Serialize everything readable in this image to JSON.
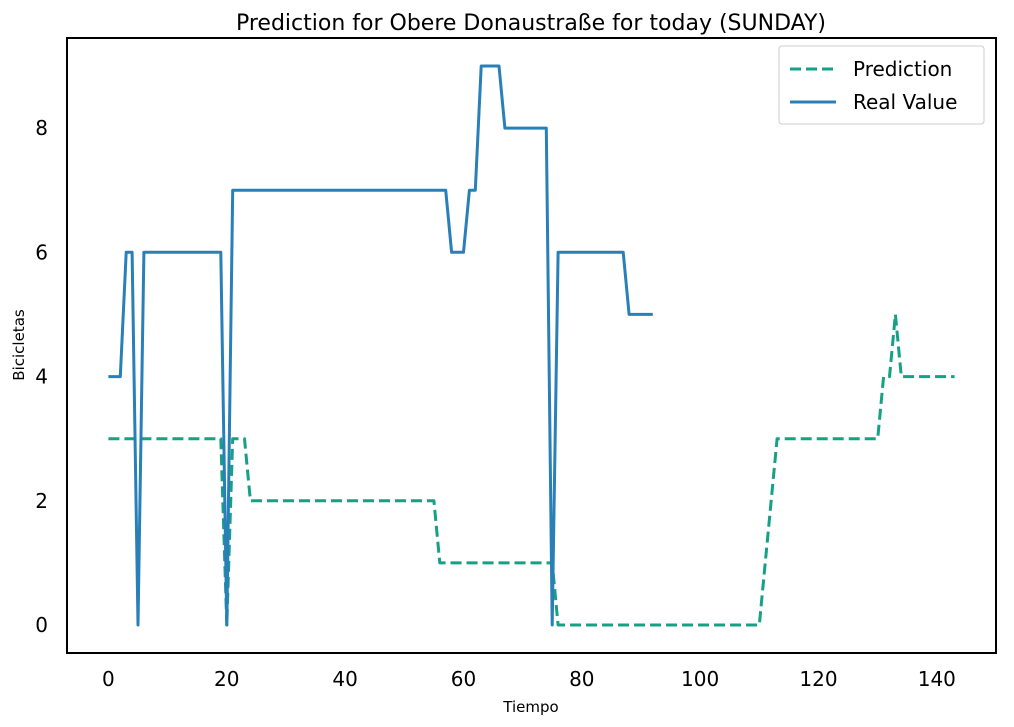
{
  "chart_data": {
    "type": "line",
    "title": "Prediction for Obere Donaustraße for today (SUNDAY)",
    "xlabel": "Tiempo",
    "ylabel": "Bicicletas",
    "xlim": [
      -7,
      150
    ],
    "ylim": [
      -0.45,
      9.45
    ],
    "xticks": [
      0,
      20,
      40,
      60,
      80,
      100,
      120,
      140
    ],
    "yticks": [
      0,
      2,
      4,
      6,
      8
    ],
    "grid": false,
    "legend_position": "top-right",
    "series": [
      {
        "name": "Prediction",
        "style": "dashed",
        "color": "#16a085",
        "x": [
          0,
          19,
          20,
          21,
          22,
          23,
          24,
          55,
          56,
          75,
          76,
          110,
          113,
          130,
          131,
          132,
          133,
          134,
          143
        ],
        "y": [
          3,
          3,
          0,
          3,
          3,
          3,
          2,
          2,
          1,
          1,
          0,
          0,
          3,
          3,
          4,
          4,
          5,
          4,
          4
        ]
      },
      {
        "name": "Real Value",
        "style": "solid",
        "color": "#2980b9",
        "x": [
          0,
          2,
          3,
          4,
          5,
          6,
          19,
          20,
          21,
          57,
          58,
          60,
          61,
          62,
          63,
          66,
          67,
          74,
          75,
          76,
          87,
          88,
          92
        ],
        "y": [
          4,
          4,
          6,
          6,
          0,
          6,
          6,
          0,
          7,
          7,
          6,
          6,
          7,
          7,
          9,
          9,
          8,
          8,
          0,
          6,
          6,
          5,
          5
        ]
      }
    ]
  }
}
